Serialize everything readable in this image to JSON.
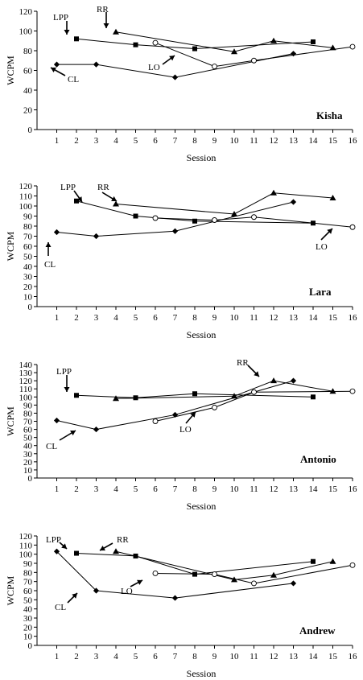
{
  "chart_data": [
    {
      "type": "line",
      "student": "Kisha",
      "xlabel": "Session",
      "ylabel": "WCPM",
      "xlim": [
        0,
        16
      ],
      "ylim": [
        0,
        120
      ],
      "x_ticks": [
        1,
        2,
        3,
        4,
        5,
        6,
        7,
        8,
        9,
        10,
        11,
        12,
        13,
        14,
        15,
        16
      ],
      "y_ticks": [
        0,
        20,
        40,
        60,
        80,
        100,
        120
      ],
      "series": [
        {
          "name": "CL",
          "marker": "diamond",
          "points": [
            [
              1,
              66
            ],
            [
              3,
              66
            ],
            [
              7,
              53
            ],
            [
              13,
              77
            ]
          ]
        },
        {
          "name": "LPP",
          "marker": "square",
          "points": [
            [
              2,
              92
            ],
            [
              5,
              86
            ],
            [
              8,
              82
            ],
            [
              14,
              89
            ]
          ]
        },
        {
          "name": "RR",
          "marker": "triangle",
          "points": [
            [
              4,
              99
            ],
            [
              10,
              79
            ],
            [
              12,
              90
            ],
            [
              15,
              83
            ]
          ]
        },
        {
          "name": "LO",
          "marker": "circle",
          "points": [
            [
              6,
              88
            ],
            [
              9,
              64
            ],
            [
              11,
              70
            ],
            [
              16,
              84
            ]
          ]
        }
      ]
    },
    {
      "type": "line",
      "student": "Lara",
      "xlabel": "Session",
      "ylabel": "WCPM",
      "xlim": [
        0,
        16
      ],
      "ylim": [
        0,
        120
      ],
      "x_ticks": [
        1,
        2,
        3,
        4,
        5,
        6,
        7,
        8,
        9,
        10,
        11,
        12,
        13,
        14,
        15,
        16
      ],
      "y_ticks": [
        0,
        10,
        20,
        30,
        40,
        50,
        60,
        70,
        80,
        90,
        100,
        110,
        120
      ],
      "series": [
        {
          "name": "CL",
          "marker": "diamond",
          "points": [
            [
              1,
              74
            ],
            [
              3,
              70
            ],
            [
              7,
              75
            ],
            [
              13,
              104
            ]
          ]
        },
        {
          "name": "LPP",
          "marker": "square",
          "points": [
            [
              2,
              105
            ],
            [
              5,
              90
            ],
            [
              8,
              85
            ],
            [
              14,
              83
            ]
          ]
        },
        {
          "name": "RR",
          "marker": "triangle",
          "points": [
            [
              4,
              102
            ],
            [
              10,
              92
            ],
            [
              12,
              113
            ],
            [
              15,
              108
            ]
          ]
        },
        {
          "name": "LO",
          "marker": "circle",
          "points": [
            [
              6,
              88
            ],
            [
              9,
              86
            ],
            [
              11,
              89
            ],
            [
              16,
              79
            ]
          ]
        }
      ]
    },
    {
      "type": "line",
      "student": "Antonio",
      "xlabel": "Session",
      "ylabel": "WCPM",
      "xlim": [
        0,
        16
      ],
      "ylim": [
        0,
        140
      ],
      "x_ticks": [
        1,
        2,
        3,
        4,
        5,
        6,
        7,
        8,
        9,
        10,
        11,
        12,
        13,
        14,
        15,
        16
      ],
      "y_ticks": [
        0,
        10,
        20,
        30,
        40,
        50,
        60,
        70,
        80,
        90,
        100,
        110,
        120,
        130,
        140
      ],
      "series": [
        {
          "name": "CL",
          "marker": "diamond",
          "points": [
            [
              1,
              71
            ],
            [
              3,
              60
            ],
            [
              7,
              78
            ],
            [
              13,
              120
            ]
          ]
        },
        {
          "name": "LPP",
          "marker": "square",
          "points": [
            [
              2,
              102
            ],
            [
              5,
              99
            ],
            [
              8,
              104
            ],
            [
              14,
              100
            ]
          ]
        },
        {
          "name": "RR",
          "marker": "triangle",
          "points": [
            [
              4,
              98
            ],
            [
              10,
              101
            ],
            [
              12,
              120
            ],
            [
              15,
              107
            ]
          ]
        },
        {
          "name": "LO",
          "marker": "circle",
          "points": [
            [
              6,
              70
            ],
            [
              9,
              87
            ],
            [
              11,
              106
            ],
            [
              16,
              107
            ]
          ]
        }
      ]
    },
    {
      "type": "line",
      "student": "Andrew",
      "xlabel": "Session",
      "ylabel": "WCPM",
      "xlim": [
        0,
        16
      ],
      "ylim": [
        0,
        120
      ],
      "x_ticks": [
        1,
        2,
        3,
        4,
        5,
        6,
        7,
        8,
        9,
        10,
        11,
        12,
        13,
        14,
        15,
        16
      ],
      "y_ticks": [
        0,
        10,
        20,
        30,
        40,
        50,
        60,
        70,
        80,
        90,
        100,
        110,
        120
      ],
      "series": [
        {
          "name": "CL",
          "marker": "diamond",
          "points": [
            [
              1,
              103
            ],
            [
              3,
              60
            ],
            [
              7,
              52
            ],
            [
              13,
              68
            ]
          ]
        },
        {
          "name": "LPP",
          "marker": "square",
          "points": [
            [
              2,
              101
            ],
            [
              5,
              98
            ],
            [
              8,
              78
            ],
            [
              14,
              92
            ]
          ]
        },
        {
          "name": "RR",
          "marker": "triangle",
          "points": [
            [
              4,
              103
            ],
            [
              10,
              72
            ],
            [
              12,
              77
            ],
            [
              15,
              92
            ]
          ]
        },
        {
          "name": "LO",
          "marker": "circle",
          "points": [
            [
              6,
              79
            ],
            [
              9,
              78
            ],
            [
              11,
              68
            ],
            [
              16,
              88
            ]
          ]
        }
      ]
    }
  ]
}
